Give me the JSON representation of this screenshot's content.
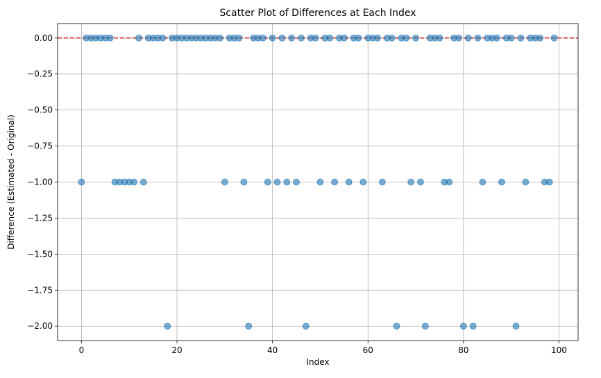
{
  "chart_data": {
    "type": "scatter",
    "title": "Scatter Plot of Differences at Each Index",
    "xlabel": "Index",
    "ylabel": "Difference (Estimated - Original)",
    "xlim": [
      -5,
      104
    ],
    "ylim": [
      -2.1,
      0.1
    ],
    "xticks": [
      0,
      20,
      40,
      60,
      80,
      100
    ],
    "xtick_labels": [
      "0",
      "20",
      "40",
      "60",
      "80",
      "100"
    ],
    "yticks": [
      0,
      -0.25,
      -0.5,
      -0.75,
      -1,
      -1.25,
      -1.5,
      -1.75,
      -2
    ],
    "ytick_labels": [
      "0.00",
      "−0.25",
      "−0.50",
      "−0.75",
      "−1.00",
      "−1.25",
      "−1.50",
      "−1.75",
      "−2.00"
    ],
    "grid": true,
    "reference_line": {
      "y": 0,
      "style": "dashed",
      "color": "#d62728"
    },
    "marker_color": "#1f77b4",
    "marker_alpha": 0.6,
    "x": [
      0,
      1,
      2,
      3,
      4,
      5,
      6,
      7,
      8,
      9,
      10,
      11,
      12,
      13,
      14,
      15,
      16,
      17,
      18,
      19,
      20,
      21,
      22,
      23,
      24,
      25,
      26,
      27,
      28,
      29,
      30,
      31,
      32,
      33,
      34,
      35,
      36,
      37,
      38,
      39,
      40,
      41,
      42,
      43,
      44,
      45,
      46,
      47,
      48,
      49,
      50,
      51,
      52,
      53,
      54,
      55,
      56,
      57,
      58,
      59,
      60,
      61,
      62,
      63,
      64,
      65,
      66,
      67,
      68,
      69,
      70,
      71,
      72,
      73,
      74,
      75,
      76,
      77,
      78,
      79,
      80,
      81,
      82,
      83,
      84,
      85,
      86,
      87,
      88,
      89,
      90,
      91,
      92,
      93,
      94,
      95,
      96,
      97,
      98,
      99
    ],
    "y": [
      -1,
      0,
      0,
      0,
      0,
      0,
      0,
      -1,
      -1,
      -1,
      -1,
      -1,
      0,
      -1,
      0,
      0,
      0,
      0,
      -2,
      0,
      0,
      0,
      0,
      0,
      0,
      0,
      0,
      0,
      0,
      0,
      -1,
      0,
      0,
      0,
      -1,
      -2,
      0,
      0,
      0,
      -1,
      0,
      -1,
      0,
      -1,
      0,
      -1,
      0,
      -2,
      0,
      0,
      -1,
      0,
      0,
      -1,
      0,
      0,
      -1,
      0,
      0,
      -1,
      0,
      0,
      0,
      -1,
      0,
      0,
      -2,
      0,
      0,
      -1,
      0,
      -1,
      -2,
      0,
      0,
      0,
      -1,
      -1,
      0,
      0,
      -2,
      0,
      -2,
      0,
      -1,
      0,
      0,
      0,
      -1,
      0,
      0,
      -2,
      0,
      -1,
      0,
      0,
      0,
      -1,
      -1,
      0
    ]
  }
}
